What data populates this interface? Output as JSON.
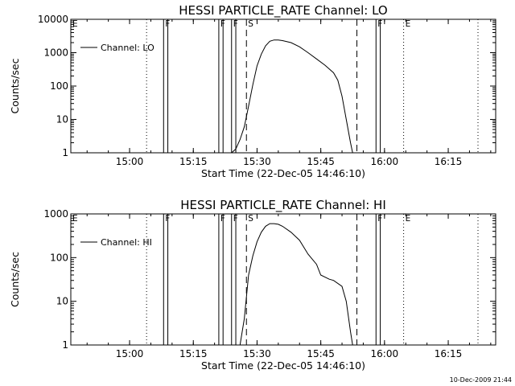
{
  "chart_data": [
    {
      "type": "line",
      "title": "HESSI PARTICLE_RATE Channel: LO",
      "xlabel": "Start Time (22-Dec-05 14:46:10)",
      "ylabel": "Counts/sec",
      "x_ticks": [
        "15:00",
        "15:15",
        "15:30",
        "15:45",
        "16:00",
        "16:15"
      ],
      "y_ticks": [
        "1",
        "10",
        "100",
        "1000",
        "10000"
      ],
      "y_scale": "log",
      "ylim": [
        1,
        10000
      ],
      "xlim": [
        "14:46:10",
        "16:26:10"
      ],
      "legend": "Channel: LO",
      "legend_position": "top-left",
      "flags": [
        {
          "label": "E",
          "time": "14:46:10",
          "style": "dotted"
        },
        {
          "label": "",
          "time": "15:04:00",
          "style": "dotted"
        },
        {
          "label": "F",
          "time": "15:08:00",
          "style": "solid"
        },
        {
          "label": "F",
          "time": "15:21:00",
          "style": "solid"
        },
        {
          "label": "F",
          "time": "15:24:00",
          "style": "solid"
        },
        {
          "label": "S",
          "time": "15:27:30",
          "style": "dashed"
        },
        {
          "label": "",
          "time": "15:53:30",
          "style": "dashed"
        },
        {
          "label": "F",
          "time": "15:58:00",
          "style": "solid"
        },
        {
          "label": "E",
          "time": "16:04:30",
          "style": "dotted"
        },
        {
          "label": "",
          "time": "16:22:00",
          "style": "dotted"
        }
      ],
      "solid_bars": [
        [
          "15:08:00",
          "15:09:00"
        ],
        [
          "15:21:00",
          "15:22:00"
        ],
        [
          "15:24:00",
          "15:25:00"
        ],
        [
          "15:58:00",
          "15:59:00"
        ]
      ],
      "series": [
        {
          "name": "Channel: LO",
          "x": [
            "15:24:00",
            "15:25:00",
            "15:26:00",
            "15:27:00",
            "15:28:00",
            "15:29:00",
            "15:30:00",
            "15:31:00",
            "15:32:00",
            "15:33:00",
            "15:34:00",
            "15:35:00",
            "15:36:00",
            "15:38:00",
            "15:40:00",
            "15:42:00",
            "15:44:00",
            "15:46:00",
            "15:48:00",
            "15:49:00",
            "15:50:00",
            "15:51:00",
            "15:52:00",
            "15:52:30"
          ],
          "y": [
            1,
            1.3,
            2.5,
            6,
            25,
            110,
            400,
            900,
            1600,
            2200,
            2400,
            2400,
            2300,
            2000,
            1500,
            1000,
            650,
            420,
            250,
            150,
            50,
            10,
            2,
            1
          ]
        }
      ]
    },
    {
      "type": "line",
      "title": "HESSI PARTICLE_RATE Channel: HI",
      "xlabel": "Start Time (22-Dec-05 14:46:10)",
      "ylabel": "Counts/sec",
      "x_ticks": [
        "15:00",
        "15:15",
        "15:30",
        "15:45",
        "16:00",
        "16:15"
      ],
      "y_ticks": [
        "1",
        "10",
        "100",
        "1000"
      ],
      "y_scale": "log",
      "ylim": [
        1,
        1000
      ],
      "xlim": [
        "14:46:10",
        "16:26:10"
      ],
      "legend": "Channel: HI",
      "legend_position": "top-left",
      "flags": [
        {
          "label": "E",
          "time": "14:46:10",
          "style": "dotted"
        },
        {
          "label": "",
          "time": "15:04:00",
          "style": "dotted"
        },
        {
          "label": "F",
          "time": "15:08:00",
          "style": "solid"
        },
        {
          "label": "F",
          "time": "15:21:00",
          "style": "solid"
        },
        {
          "label": "F",
          "time": "15:24:00",
          "style": "solid"
        },
        {
          "label": "S",
          "time": "15:27:30",
          "style": "dashed"
        },
        {
          "label": "",
          "time": "15:53:30",
          "style": "dashed"
        },
        {
          "label": "F",
          "time": "15:58:00",
          "style": "solid"
        },
        {
          "label": "E",
          "time": "16:04:30",
          "style": "dotted"
        },
        {
          "label": "",
          "time": "16:22:00",
          "style": "dotted"
        }
      ],
      "solid_bars": [
        [
          "15:08:00",
          "15:09:00"
        ],
        [
          "15:21:00",
          "15:22:00"
        ],
        [
          "15:24:00",
          "15:25:00"
        ],
        [
          "15:58:00",
          "15:59:00"
        ]
      ],
      "series": [
        {
          "name": "Channel: HI",
          "x": [
            "15:26:00",
            "15:27:00",
            "15:28:00",
            "15:29:00",
            "15:30:00",
            "15:31:00",
            "15:32:00",
            "15:33:00",
            "15:34:00",
            "15:35:00",
            "15:36:00",
            "15:38:00",
            "15:40:00",
            "15:42:00",
            "15:44:00",
            "15:45:00",
            "15:47:00",
            "15:48:00",
            "15:50:00",
            "15:51:00",
            "15:52:00",
            "15:52:30"
          ],
          "y": [
            1,
            4,
            40,
            110,
            230,
            380,
            520,
            600,
            600,
            580,
            520,
            380,
            250,
            120,
            70,
            40,
            32,
            30,
            22,
            10,
            2,
            1
          ]
        }
      ]
    }
  ],
  "timestamp": "10-Dec-2009 21:44"
}
